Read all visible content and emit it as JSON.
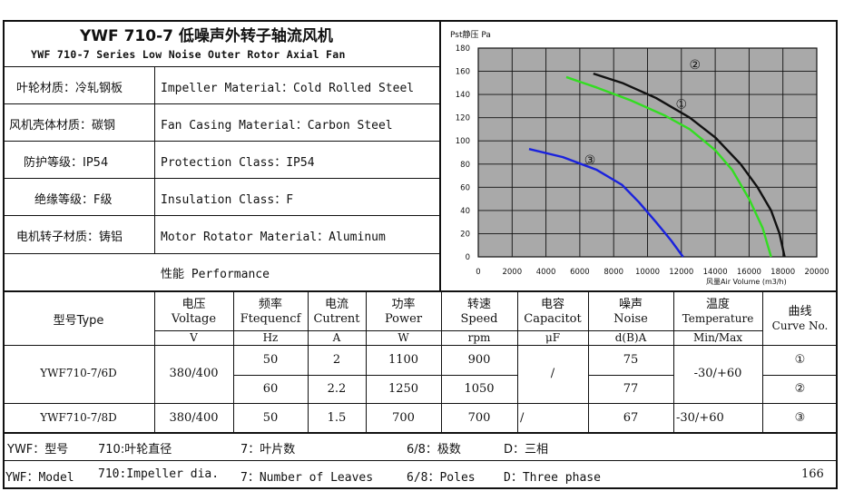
{
  "header": {
    "title_cn": "YWF 710-7 低噪声外转子轴流风机",
    "title_en": "YWF 710-7 Series Low Noise Outer Rotor Axial Fan"
  },
  "specs": [
    {
      "cn": "叶轮材质：冷轧钢板",
      "en": "Impeller Material：Cold Rolled Steel"
    },
    {
      "cn": "风机壳体材质：碳钢",
      "en": "Fan Casing Material：Carbon Steel"
    },
    {
      "cn": "防护等级：IP54",
      "en": "Protection Class：IP54"
    },
    {
      "cn": "绝缘等级：F级",
      "en": "Insulation Class：F"
    },
    {
      "cn": "电机转子材质：铸铝",
      "en": "Motor Rotator Material：Aluminum"
    }
  ],
  "performance_label": "性能  Performance",
  "table": {
    "type_header": "型号Type",
    "headers": [
      {
        "cn": "电压",
        "en": "Voltage",
        "unit": "V"
      },
      {
        "cn": "频率",
        "en": "Ftequencf",
        "unit": "Hz"
      },
      {
        "cn": "电流",
        "en": "Cutrent",
        "unit": "A"
      },
      {
        "cn": "功率",
        "en": "Power",
        "unit": "W"
      },
      {
        "cn": "转速",
        "en": "Speed",
        "unit": "rpm"
      },
      {
        "cn": "电容",
        "en": "Capacitot",
        "unit": "μF"
      },
      {
        "cn": "噪声",
        "en": "Noise",
        "unit": "d(B)A"
      },
      {
        "cn": "温度",
        "en": "Temperature",
        "unit": "Min/Max"
      },
      {
        "cn": "曲线",
        "en": "Curve No.",
        "unit": ""
      }
    ],
    "rows": [
      {
        "model": "YWF710-7/6D",
        "voltage": "380/400",
        "sub": [
          {
            "freq": "50",
            "current": "2",
            "power": "1100",
            "speed": "900",
            "noise": "75",
            "curve": "①"
          },
          {
            "freq": "60",
            "current": "2.2",
            "power": "1250",
            "speed": "1050",
            "noise": "77",
            "curve": "②"
          }
        ],
        "capacitor": "/",
        "temperature": "-30/+60"
      },
      {
        "model": "YWF710-7/8D",
        "voltage": "380/400",
        "sub": [
          {
            "freq": "50",
            "current": "1.5",
            "power": "700",
            "speed": "700",
            "noise": "67",
            "curve": "③"
          }
        ],
        "capacitor": "/",
        "temperature": "-30/+60"
      }
    ]
  },
  "footer": {
    "line1": [
      "YWF：型号",
      "710:叶轮直径",
      "7：叶片数",
      "6/8：极数",
      "D：三相"
    ],
    "line2": [
      "YWF：Model",
      "710:Impeller dia.",
      "7：Number of Leaves",
      "6/8：Poles",
      "D：Three phase"
    ],
    "page": "166"
  },
  "chart_data": {
    "type": "line",
    "ylabel": "Pst静压 Pa",
    "xlabel": "风量Air Volume  (m3/h)",
    "xlim": [
      0,
      20000
    ],
    "ylim": [
      0,
      180
    ],
    "xticks": [
      0,
      2000,
      4000,
      6000,
      8000,
      10000,
      12000,
      14000,
      16000,
      18000,
      20000
    ],
    "yticks": [
      0,
      20,
      40,
      60,
      80,
      100,
      120,
      140,
      160,
      180
    ],
    "grid": true,
    "series": [
      {
        "name": "①",
        "color": "#33dd22",
        "x": [
          5200,
          7000,
          9000,
          11000,
          12500,
          14000,
          15000,
          16000,
          16800,
          17300
        ],
        "y": [
          155,
          146,
          135,
          122,
          110,
          92,
          75,
          50,
          25,
          0
        ]
      },
      {
        "name": "②",
        "color": "#111111",
        "x": [
          6800,
          8500,
          10500,
          12500,
          14000,
          15500,
          16500,
          17300,
          17800,
          18100
        ],
        "y": [
          158,
          150,
          137,
          120,
          103,
          80,
          60,
          40,
          20,
          0
        ]
      },
      {
        "name": "③",
        "color": "#1a22dd",
        "x": [
          3000,
          5000,
          7000,
          8500,
          9500,
          10500,
          11400,
          12100
        ],
        "y": [
          93,
          86,
          75,
          62,
          47,
          30,
          14,
          0
        ]
      }
    ]
  }
}
